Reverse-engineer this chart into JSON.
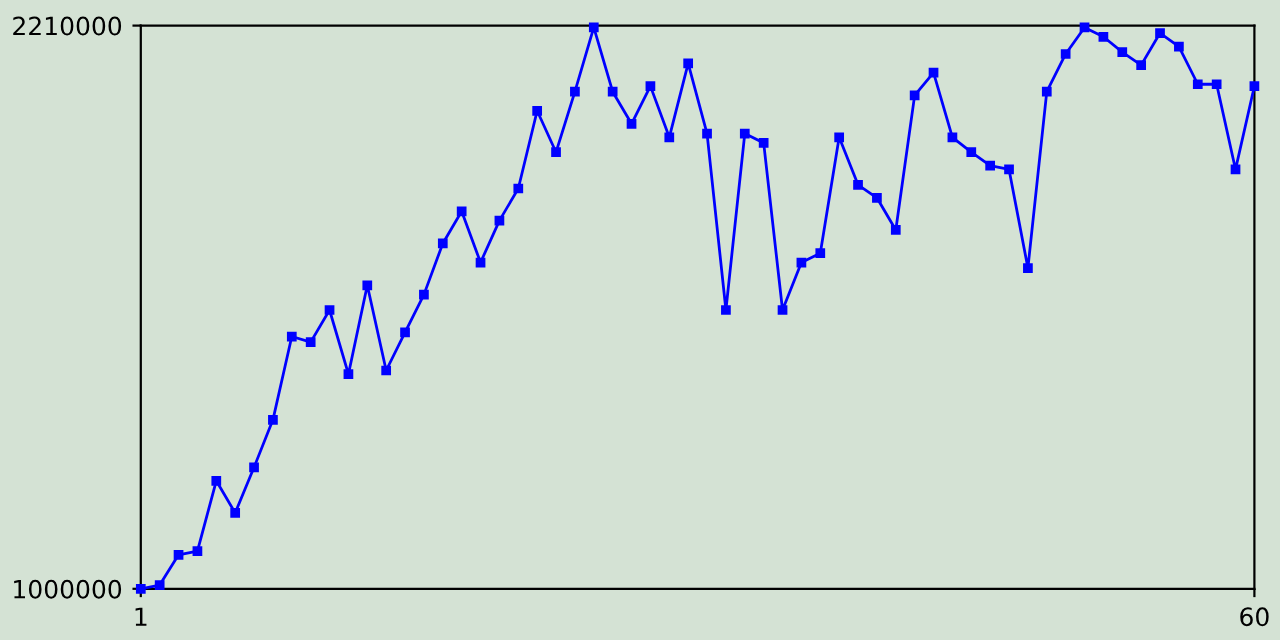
{
  "chart_data": {
    "type": "line",
    "x": [
      1,
      2,
      3,
      4,
      5,
      6,
      7,
      8,
      9,
      10,
      11,
      12,
      13,
      14,
      15,
      16,
      17,
      18,
      19,
      20,
      21,
      22,
      23,
      24,
      25,
      26,
      27,
      28,
      29,
      30,
      31,
      32,
      33,
      34,
      35,
      36,
      37,
      38,
      39,
      40,
      41,
      42,
      43,
      44,
      45,
      46,
      47,
      48,
      49,
      50,
      51,
      52,
      53,
      54,
      55,
      56,
      57,
      58,
      59,
      60
    ],
    "series": [
      {
        "color": "#0000ff",
        "values": [
          1000000,
          1008000,
          1073000,
          1081000,
          1232000,
          1163000,
          1261000,
          1363000,
          1542000,
          1530000,
          1599000,
          1461000,
          1652000,
          1469000,
          1551000,
          1632000,
          1742000,
          1811000,
          1701000,
          1791000,
          1860000,
          2027000,
          1938000,
          2068000,
          2206000,
          2068000,
          1999000,
          2080000,
          1970000,
          2129000,
          1978000,
          1599000,
          1978000,
          1958000,
          1599000,
          1701000,
          1721000,
          1970000,
          1868000,
          1840000,
          1771000,
          2060000,
          2109000,
          1970000,
          1938000,
          1909000,
          1901000,
          1689000,
          2068000,
          2149000,
          2206000,
          2186000,
          2153000,
          2125000,
          2194000,
          2165000,
          2084000,
          2084000,
          1901000,
          2080000
        ]
      }
    ],
    "xlim": [
      1,
      60
    ],
    "ylim": [
      1000000,
      2210000
    ],
    "xticks": [
      1,
      60
    ],
    "yticks": [
      1000000,
      2210000
    ],
    "marker": "square",
    "line_style": "solid",
    "grid": false,
    "legend": false
  }
}
